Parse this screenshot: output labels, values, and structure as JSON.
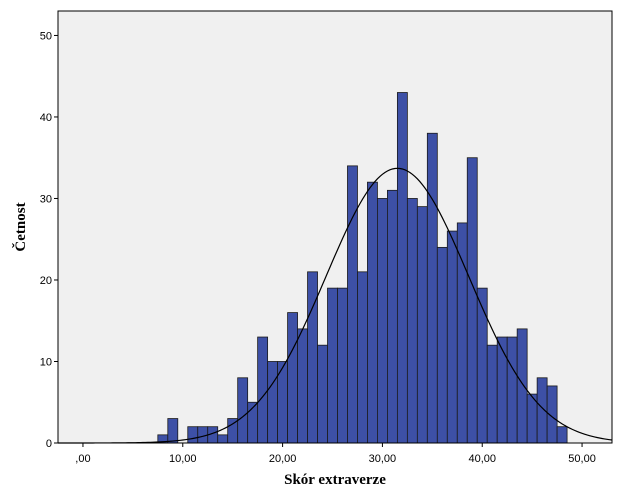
{
  "chart_data": {
    "type": "histogram",
    "xlabel": "Skór extraverze",
    "ylabel": "Četnost",
    "xlim": [
      -2.5,
      53
    ],
    "ylim": [
      0,
      53
    ],
    "x_ticks": [
      {
        "value": 0,
        "label": ",00"
      },
      {
        "value": 10,
        "label": "10,00"
      },
      {
        "value": 20,
        "label": "20,00"
      },
      {
        "value": 30,
        "label": "30,00"
      },
      {
        "value": 40,
        "label": "40,00"
      },
      {
        "value": 50,
        "label": "50,00"
      }
    ],
    "y_ticks": [
      {
        "value": 0,
        "label": "0"
      },
      {
        "value": 10,
        "label": "10"
      },
      {
        "value": 20,
        "label": "20"
      },
      {
        "value": 30,
        "label": "30"
      },
      {
        "value": 40,
        "label": "40"
      },
      {
        "value": 50,
        "label": "50"
      }
    ],
    "bin_width": 1,
    "bins": [
      {
        "x": 8,
        "count": 1
      },
      {
        "x": 9,
        "count": 3
      },
      {
        "x": 11,
        "count": 2
      },
      {
        "x": 12,
        "count": 2
      },
      {
        "x": 13,
        "count": 2
      },
      {
        "x": 14,
        "count": 1
      },
      {
        "x": 15,
        "count": 3
      },
      {
        "x": 16,
        "count": 8
      },
      {
        "x": 17,
        "count": 5
      },
      {
        "x": 18,
        "count": 13
      },
      {
        "x": 19,
        "count": 10
      },
      {
        "x": 20,
        "count": 10
      },
      {
        "x": 21,
        "count": 16
      },
      {
        "x": 22,
        "count": 14
      },
      {
        "x": 23,
        "count": 21
      },
      {
        "x": 24,
        "count": 12
      },
      {
        "x": 25,
        "count": 19
      },
      {
        "x": 26,
        "count": 19
      },
      {
        "x": 27,
        "count": 34
      },
      {
        "x": 28,
        "count": 21
      },
      {
        "x": 29,
        "count": 32
      },
      {
        "x": 30,
        "count": 30
      },
      {
        "x": 31,
        "count": 31
      },
      {
        "x": 32,
        "count": 43
      },
      {
        "x": 33,
        "count": 30
      },
      {
        "x": 34,
        "count": 29
      },
      {
        "x": 35,
        "count": 38
      },
      {
        "x": 36,
        "count": 24
      },
      {
        "x": 37,
        "count": 26
      },
      {
        "x": 38,
        "count": 27
      },
      {
        "x": 39,
        "count": 35
      },
      {
        "x": 40,
        "count": 19
      },
      {
        "x": 41,
        "count": 12
      },
      {
        "x": 42,
        "count": 13
      },
      {
        "x": 43,
        "count": 13
      },
      {
        "x": 44,
        "count": 14
      },
      {
        "x": 45,
        "count": 6
      },
      {
        "x": 46,
        "count": 8
      },
      {
        "x": 47,
        "count": 7
      },
      {
        "x": 48,
        "count": 2
      }
    ],
    "normal_curve": {
      "mean": 31.5,
      "sd": 7.15,
      "peak": 33.7
    },
    "grid": false,
    "colors": {
      "bar_fill": "#3d50a6",
      "bar_stroke": "#1a1a1a",
      "plot_background": "#f0f0f0",
      "curve": "#000000"
    }
  }
}
